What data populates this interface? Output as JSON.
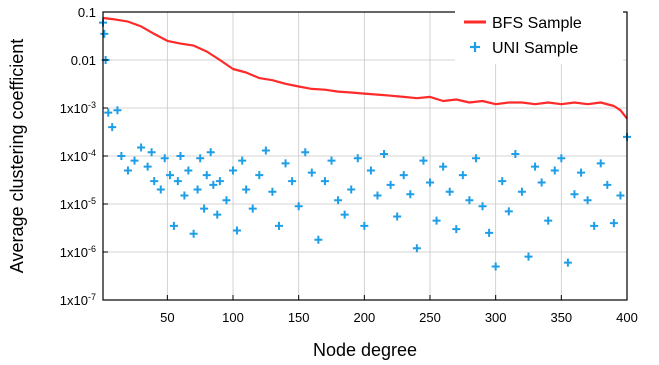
{
  "chart_data": {
    "type": "line",
    "xlabel": "Node degree",
    "ylabel": "Average clustering coefficient",
    "xlim": [
      1,
      400
    ],
    "ylim": [
      1e-07,
      0.1
    ],
    "yscale": "log",
    "grid": true,
    "legend_position": "top-right",
    "x_ticks": [
      50,
      100,
      150,
      200,
      250,
      300,
      350,
      400
    ],
    "x_tick_labels": [
      "50",
      "100",
      "150",
      "200",
      "250",
      "300",
      "350",
      "400"
    ],
    "y_ticks": [
      0.1,
      0.01,
      0.001,
      0.0001,
      1e-05,
      1e-06,
      1e-07
    ],
    "y_tick_labels": [
      {
        "base": "0.1",
        "exp": ""
      },
      {
        "base": "0.01",
        "exp": ""
      },
      {
        "base": "1x10",
        "exp": "-3"
      },
      {
        "base": "1x10",
        "exp": "-4"
      },
      {
        "base": "1x10",
        "exp": "-5"
      },
      {
        "base": "1x10",
        "exp": "-6"
      },
      {
        "base": "1x10",
        "exp": "-7"
      }
    ],
    "series": [
      {
        "name": "BFS Sample",
        "color": "#ff2a2a",
        "mark": "line",
        "x": [
          1,
          10,
          20,
          30,
          40,
          50,
          60,
          70,
          80,
          90,
          100,
          110,
          120,
          130,
          140,
          150,
          160,
          170,
          180,
          190,
          200,
          210,
          220,
          230,
          240,
          250,
          260,
          270,
          280,
          290,
          300,
          310,
          320,
          330,
          340,
          350,
          360,
          370,
          380,
          390,
          395,
          400
        ],
        "y": [
          0.075,
          0.07,
          0.063,
          0.05,
          0.035,
          0.025,
          0.022,
          0.02,
          0.015,
          0.01,
          0.0065,
          0.0055,
          0.0042,
          0.0038,
          0.0032,
          0.0028,
          0.0025,
          0.0024,
          0.0022,
          0.0021,
          0.002,
          0.0019,
          0.0018,
          0.0017,
          0.0016,
          0.0017,
          0.0014,
          0.0015,
          0.0013,
          0.0014,
          0.0012,
          0.0013,
          0.0013,
          0.0012,
          0.0013,
          0.0012,
          0.0013,
          0.0012,
          0.0013,
          0.0011,
          0.0009,
          0.0006
        ]
      },
      {
        "name": "UNI Sample",
        "color": "#1e9ee6",
        "mark": "plus",
        "x": [
          1,
          2,
          3,
          5,
          8,
          12,
          15,
          20,
          25,
          30,
          35,
          38,
          40,
          45,
          48,
          52,
          55,
          58,
          60,
          63,
          66,
          70,
          73,
          75,
          78,
          80,
          83,
          85,
          88,
          90,
          95,
          100,
          103,
          107,
          110,
          115,
          120,
          125,
          130,
          135,
          140,
          145,
          150,
          155,
          160,
          165,
          170,
          175,
          180,
          185,
          190,
          195,
          200,
          205,
          210,
          215,
          220,
          225,
          230,
          235,
          240,
          245,
          250,
          255,
          260,
          265,
          270,
          275,
          280,
          285,
          290,
          295,
          300,
          305,
          310,
          315,
          320,
          325,
          330,
          335,
          340,
          345,
          350,
          355,
          360,
          365,
          370,
          375,
          380,
          385,
          390,
          395,
          400
        ],
        "y": [
          0.06,
          0.035,
          0.01,
          0.0008,
          0.0004,
          0.0009,
          0.0001,
          5e-05,
          8e-05,
          0.00015,
          6e-05,
          0.00012,
          3e-05,
          2e-05,
          9e-05,
          4e-05,
          3.5e-06,
          3e-05,
          0.0001,
          1.5e-05,
          5e-05,
          2.4e-06,
          2e-05,
          9e-05,
          8e-06,
          4e-05,
          0.00012,
          2.5e-05,
          6e-06,
          3e-05,
          1.2e-05,
          5e-05,
          2.8e-06,
          8e-05,
          2e-05,
          8e-06,
          4e-05,
          0.00013,
          1.8e-05,
          3.5e-06,
          7e-05,
          3e-05,
          9e-06,
          0.00012,
          4.5e-05,
          1.8e-06,
          3e-05,
          8e-05,
          1.2e-05,
          6e-06,
          2e-05,
          9e-05,
          3.5e-06,
          5e-05,
          1.5e-05,
          0.00011,
          2.5e-05,
          5.5e-06,
          4e-05,
          1.6e-05,
          1.2e-06,
          8e-05,
          2.8e-05,
          4.5e-06,
          6e-05,
          1.8e-05,
          3e-06,
          4e-05,
          1.2e-05,
          9e-05,
          9e-06,
          2.5e-06,
          5e-07,
          3e-05,
          7e-06,
          0.00011,
          1.8e-05,
          8e-07,
          6e-05,
          2.8e-05,
          4.5e-06,
          5e-05,
          9e-05,
          6e-07,
          1.6e-05,
          4.5e-05,
          1.2e-05,
          3.5e-06,
          7e-05,
          2.5e-05,
          4e-06,
          1.5e-05,
          0.00025
        ]
      }
    ]
  }
}
